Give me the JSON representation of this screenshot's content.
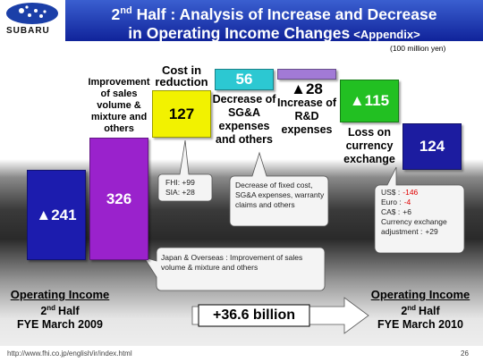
{
  "header": {
    "logo_text": "SUBARU",
    "title_num": "2",
    "title_sup": "nd",
    "title_rest": " Half : Analysis of Increase and Decrease",
    "title_line2": "in Operating Income Changes",
    "title_tag": "<Appendix>"
  },
  "chart_data": {
    "type": "waterfall",
    "unit": "(100 million yen)",
    "categories": [
      null,
      "Improvement of sales volume & mixture and others",
      "Cost in reduction",
      "Decrease of SG&A expenses and others",
      "Increase of R&D expenses",
      "Loss on currency exchange",
      null
    ],
    "values": [
      -241,
      326,
      127,
      56,
      -28,
      -115,
      124
    ],
    "value_labels": [
      "▲241",
      "326",
      "127",
      "56",
      "▲28",
      "▲115",
      "124"
    ],
    "colors": [
      "#1c1cae",
      "#9a22cc",
      "#f2f200",
      "#2cc8d2",
      "#a27ad6",
      "#22c022",
      "#1c1ca0"
    ],
    "period_labels": [
      {
        "title": "Operating Income",
        "num": "2",
        "sup": "nd",
        "half": "Half",
        "fye": "FYE March 2009"
      },
      {
        "title": "Operating Income",
        "num": "2",
        "sup": "nd",
        "half": "Half",
        "fye": "FYE March 2010"
      }
    ],
    "annotations": {
      "cost_breakdown": [
        "FHI: +99",
        "SIA: +28"
      ],
      "sga_note": "Decrease of fixed cost, SG&A expenses, warranty claims and others",
      "sales_note": "Japan & Overseas : Improvement of sales volume & mixture and others",
      "currency": [
        {
          "label": "US$ :",
          "value": "-146",
          "color": "#e00000"
        },
        {
          "label": "Euro :",
          "value": "-4",
          "color": "#e00000"
        },
        {
          "label": "CA$ :",
          "value": "+6",
          "color": "#222222"
        },
        {
          "label": "Currency exchange adjustment :",
          "value": "+29",
          "color": "#222222"
        }
      ]
    },
    "difference": "+36.6 billion"
  },
  "footer": {
    "url": "http://www.fhi.co.jp/english/ir/index.html",
    "page": "26"
  }
}
